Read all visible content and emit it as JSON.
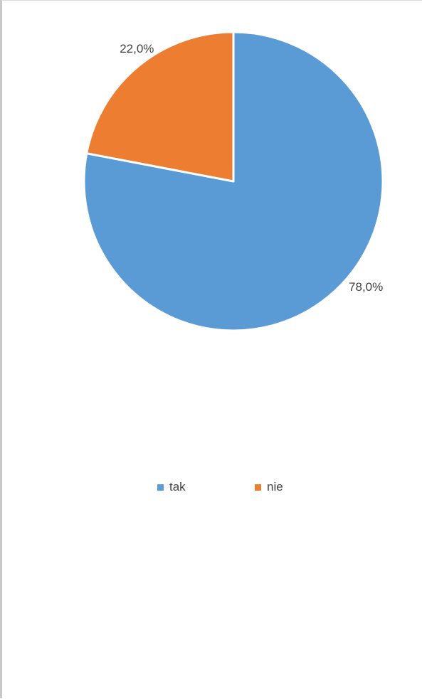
{
  "chart_data": {
    "type": "pie",
    "title": "",
    "categories": [
      "tak",
      "nie"
    ],
    "values": [
      78.0,
      22.0
    ],
    "data_labels": [
      "78,0%",
      "22,0%"
    ],
    "colors": [
      "#5B9BD5",
      "#ED7D31"
    ],
    "start_angle_deg": 0,
    "direction": "clockwise",
    "legend_position": "bottom"
  },
  "legend": {
    "items": [
      {
        "label": "tak",
        "color": "#5B9BD5"
      },
      {
        "label": "nie",
        "color": "#ED7D31"
      }
    ]
  }
}
